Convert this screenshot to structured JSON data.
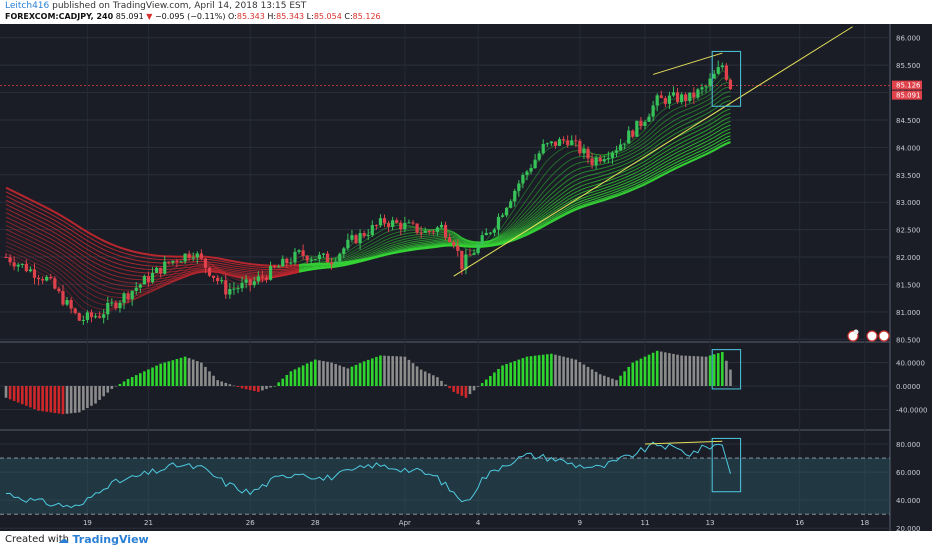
{
  "header": {
    "author": "Leitch416",
    "published_text": "published on TradingView.com, April 14, 2018 13:15 EST",
    "symbol": "FOREXCOM:CADJPY, 240",
    "last": "85.091",
    "change_arrow": "▼",
    "change": "−0.095 (−0.11%)",
    "o_label": "O:",
    "o_value": "85.343",
    "h_label": "H:",
    "h_value": "85.343",
    "l_label": "L:",
    "l_value": "85.054",
    "c_label": "C:",
    "c_value": "85.126"
  },
  "footer": {
    "created_with": "Created with",
    "brand": "TradingView"
  },
  "chart_data": [
    {
      "type": "candlestick",
      "panel": "price",
      "price_axis_labels": [
        "86.000",
        "85.500",
        "85.000",
        "84.500",
        "84.000",
        "83.500",
        "83.000",
        "82.500",
        "82.000",
        "81.500",
        "81.000",
        "80.500"
      ],
      "ylim": [
        80.45,
        86.25
      ],
      "date_labels": [
        "19",
        "21",
        "26",
        "28",
        "Apr",
        "4",
        "9",
        "11",
        "13",
        "16",
        "18"
      ],
      "current_price_labels": [
        "85.126",
        "85.091"
      ],
      "current_price": 85.126,
      "close_anchors": [
        [
          0,
          82.0
        ],
        [
          10,
          81.6
        ],
        [
          18,
          80.85
        ],
        [
          23,
          80.95
        ],
        [
          32,
          81.45
        ],
        [
          40,
          81.9
        ],
        [
          46,
          82.1
        ],
        [
          54,
          81.4
        ],
        [
          60,
          81.5
        ],
        [
          72,
          82.05
        ],
        [
          80,
          81.95
        ],
        [
          85,
          82.3
        ],
        [
          93,
          82.65
        ],
        [
          99,
          82.55
        ],
        [
          103,
          82.45
        ],
        [
          107,
          82.55
        ],
        [
          110,
          82.3
        ],
        [
          112,
          81.85
        ],
        [
          116,
          82.2
        ],
        [
          120,
          82.6
        ],
        [
          126,
          83.35
        ],
        [
          132,
          84.0
        ],
        [
          138,
          84.15
        ],
        [
          144,
          83.75
        ],
        [
          150,
          84.0
        ],
        [
          156,
          84.45
        ],
        [
          160,
          84.85
        ],
        [
          164,
          84.9
        ],
        [
          168,
          84.9
        ],
        [
          172,
          85.1
        ],
        [
          176,
          85.5
        ],
        [
          178,
          85.12
        ]
      ],
      "trendlines": [
        {
          "from": [
            110,
            81.65
          ],
          "to": [
            208,
            86.2
          ],
          "color": "#e6e05a"
        },
        {
          "from": [
            159,
            85.33
          ],
          "to": [
            176,
            85.72
          ],
          "color": "#e6e05a"
        }
      ],
      "ribbon": {
        "first_bar": 0,
        "crossover_bar": 72,
        "lower_band_end": 83.75,
        "colors": {
          "bearish": "#c8282f",
          "bullish": "#35d435"
        }
      },
      "highlight_box": {
        "bar_range": [
          174,
          180
        ],
        "color": "#4ec9e0"
      }
    },
    {
      "type": "histogram",
      "panel": "momentum",
      "axis_labels": [
        "40.0000",
        "0.0000",
        "-40.0000"
      ],
      "ylim": [
        -75,
        75
      ],
      "anchors": [
        [
          0,
          -20
        ],
        [
          8,
          -42
        ],
        [
          14,
          -48
        ],
        [
          18,
          -45
        ],
        [
          22,
          -30
        ],
        [
          26,
          -5
        ],
        [
          30,
          12
        ],
        [
          38,
          38
        ],
        [
          44,
          50
        ],
        [
          48,
          40
        ],
        [
          52,
          10
        ],
        [
          58,
          -4
        ],
        [
          62,
          -10
        ],
        [
          66,
          0
        ],
        [
          70,
          25
        ],
        [
          76,
          45
        ],
        [
          80,
          40
        ],
        [
          84,
          30
        ],
        [
          88,
          42
        ],
        [
          92,
          52
        ],
        [
          98,
          50
        ],
        [
          102,
          28
        ],
        [
          106,
          15
        ],
        [
          110,
          -10
        ],
        [
          113,
          -20
        ],
        [
          117,
          5
        ],
        [
          122,
          35
        ],
        [
          128,
          50
        ],
        [
          134,
          55
        ],
        [
          140,
          45
        ],
        [
          146,
          20
        ],
        [
          150,
          10
        ],
        [
          154,
          40
        ],
        [
          160,
          60
        ],
        [
          166,
          52
        ],
        [
          172,
          50
        ],
        [
          176,
          58
        ],
        [
          178,
          28
        ]
      ],
      "colors": {
        "rising_up": "#2fd42f",
        "falling_up": "#8c8c8c",
        "falling_down": "#d0282a",
        "rising_down": "#8c8c8c"
      },
      "highlight_box": {
        "bar_range": [
          174,
          180
        ],
        "color": "#4ec9e0"
      }
    },
    {
      "type": "line",
      "panel": "oscillator",
      "axis_labels": [
        "80.000",
        "60.000",
        "40.000",
        "20.000"
      ],
      "ylim": [
        18,
        90
      ],
      "band": [
        30,
        70
      ],
      "anchors": [
        [
          0,
          45
        ],
        [
          6,
          40
        ],
        [
          12,
          37
        ],
        [
          18,
          35
        ],
        [
          24,
          50
        ],
        [
          30,
          55
        ],
        [
          36,
          60
        ],
        [
          42,
          65
        ],
        [
          48,
          63
        ],
        [
          54,
          52
        ],
        [
          60,
          45
        ],
        [
          66,
          55
        ],
        [
          72,
          60
        ],
        [
          78,
          55
        ],
        [
          84,
          60
        ],
        [
          90,
          65
        ],
        [
          96,
          63
        ],
        [
          102,
          60
        ],
        [
          106,
          56
        ],
        [
          110,
          45
        ],
        [
          113,
          38
        ],
        [
          117,
          55
        ],
        [
          122,
          65
        ],
        [
          128,
          72
        ],
        [
          134,
          70
        ],
        [
          140,
          65
        ],
        [
          146,
          63
        ],
        [
          152,
          70
        ],
        [
          156,
          75
        ],
        [
          160,
          80
        ],
        [
          164,
          77
        ],
        [
          168,
          73
        ],
        [
          172,
          78
        ],
        [
          176,
          80
        ],
        [
          178,
          60
        ]
      ],
      "line_color": "#4ec9e0",
      "trendline": {
        "from": [
          157,
          80
        ],
        "to": [
          176,
          82
        ],
        "color": "#e6e05a"
      },
      "highlight_box": {
        "bar_range": [
          174,
          180
        ],
        "color": "#4ec9e0"
      }
    }
  ]
}
